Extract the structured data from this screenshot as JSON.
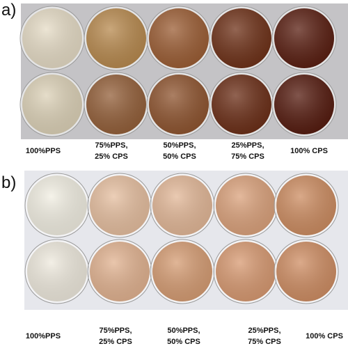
{
  "panels": [
    {
      "label": "a)",
      "captions": [
        [
          "100%PPS"
        ],
        [
          "75%PPS,",
          "25% CPS"
        ],
        [
          "50%PPS,",
          "50% CPS"
        ],
        [
          "25%PPS,",
          "75% CPS"
        ],
        [
          "100% CPS"
        ]
      ]
    },
    {
      "label": "b)",
      "captions": [
        [
          "100%PPS"
        ],
        [
          "75%PPS,",
          "25% CPS"
        ],
        [
          "50%PPS,",
          "50% CPS"
        ],
        [
          "25%PPS,",
          "75% CPS"
        ],
        [
          "100% CPS"
        ]
      ]
    }
  ]
}
